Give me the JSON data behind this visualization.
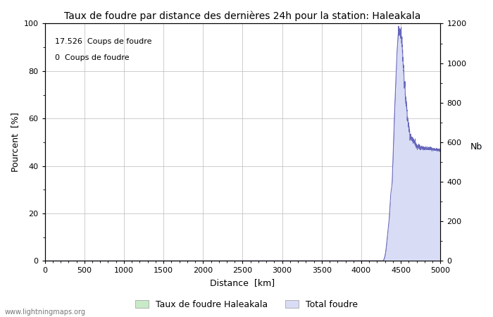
{
  "title": "Taux de foudre par distance des dernières 24h pour la station: Haleakala",
  "xlabel": "Distance  [km]",
  "ylabel_left": "Pourcent  [%]",
  "ylabel_right": "Nb",
  "annotation_line1": "17.526  Coups de foudre",
  "annotation_line2": "0  Coups de foudre",
  "legend_label1": "Taux de foudre Haleakala",
  "legend_label2": "Total foudre",
  "watermark": "www.lightningmaps.org",
  "xlim": [
    0,
    5000
  ],
  "ylim_left": [
    0,
    100
  ],
  "ylim_right": [
    0,
    1200
  ],
  "xticks": [
    0,
    500,
    1000,
    1500,
    2000,
    2500,
    3000,
    3500,
    4000,
    4500,
    5000
  ],
  "yticks_left": [
    0,
    20,
    40,
    60,
    80,
    100
  ],
  "yticks_right": [
    0,
    200,
    400,
    600,
    800,
    1000,
    1200
  ],
  "fill_color_green": "#c8eac8",
  "fill_color_blue": "#d8dcf5",
  "line_color": "#6666bb",
  "grid_color": "#bbbbbb",
  "bg_color": "#ffffff",
  "title_fontsize": 10,
  "label_fontsize": 9,
  "tick_fontsize": 8,
  "annot_fontsize": 8
}
